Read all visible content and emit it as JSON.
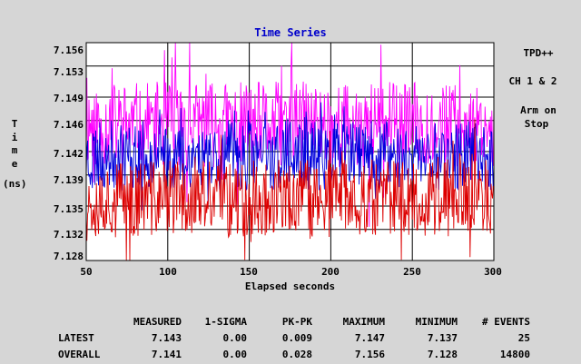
{
  "chart_data": {
    "type": "line",
    "title": "Time Series",
    "xlabel": "Elapsed seconds",
    "ylabel_letters": [
      "T",
      "i",
      "m",
      "e"
    ],
    "ylabel_unit": "(ns)",
    "xlim": [
      50,
      300
    ],
    "ylim": [
      7.128,
      7.156
    ],
    "x_ticks": [
      "50",
      "100",
      "150",
      "200",
      "250",
      "300"
    ],
    "y_ticks": [
      "7.156",
      "7.153",
      "7.149",
      "7.146",
      "7.142",
      "7.139",
      "7.135",
      "7.132",
      "7.128"
    ],
    "grid": true,
    "series": [
      {
        "color": "#ff00ff",
        "base": 7.1455,
        "amp": 0.0055,
        "spike": 0.009,
        "seed": 11
      },
      {
        "color": "#0000dd",
        "base": 7.1415,
        "amp": 0.0045,
        "spike": 0.004,
        "seed": 23
      },
      {
        "color": "#dd0000",
        "base": 7.136,
        "amp": 0.005,
        "spike": 0.007,
        "seed": 37
      }
    ]
  },
  "side_panel": {
    "device": "TPD++",
    "channels": "CH 1 & 2",
    "arm_line1": "Arm on",
    "arm_line2": "Stop"
  },
  "stats": {
    "headers": [
      "MEASURED",
      "1-SIGMA",
      "PK-PK",
      "MAXIMUM",
      "MINIMUM",
      "# EVENTS"
    ],
    "rows": [
      {
        "label": "LATEST",
        "values": [
          "7.143",
          "0.00",
          "0.009",
          "7.147",
          "7.137",
          "25"
        ]
      },
      {
        "label": "OVERALL",
        "values": [
          "7.141",
          "0.00",
          "0.028",
          "7.156",
          "7.128",
          "14800"
        ]
      }
    ]
  },
  "colors": {
    "background": "#d6d6d6",
    "plot_bg": "#ffffff",
    "title": "#0000cc",
    "grid": "#000000"
  }
}
